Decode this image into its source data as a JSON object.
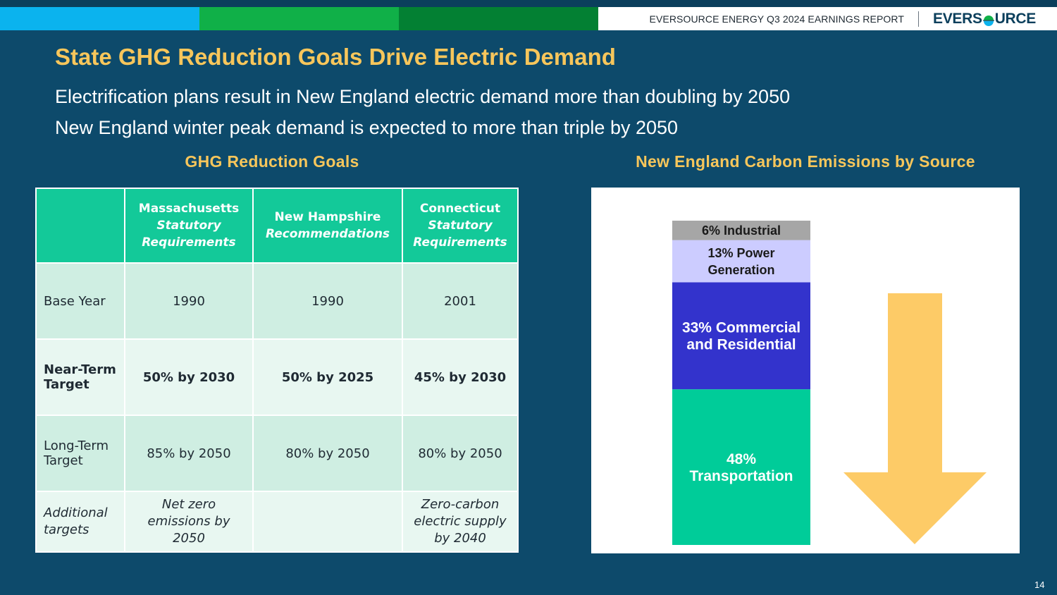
{
  "header": {
    "report_title": "EVERSOURCE ENERGY Q3 2024 EARNINGS REPORT",
    "logo_left": "EVERS",
    "logo_right": "URCE",
    "band_colors": [
      "#0bb3ee",
      "#10b048",
      "#038033"
    ]
  },
  "title": "State GHG Reduction Goals Drive Electric Demand",
  "sublines": [
    "Electrification plans result in New England electric demand more than doubling by 2050",
    "New England winter peak demand is expected to more than triple by 2050"
  ],
  "table": {
    "section_title": "GHG Reduction Goals",
    "columns": [
      {
        "name": "Massachusetts",
        "qualifier": [
          "Statutory",
          "Requirements"
        ]
      },
      {
        "name": "New Hampshire",
        "qualifier": [
          "Recommendations"
        ]
      },
      {
        "name": "Connecticut",
        "qualifier": [
          "Statutory",
          "Requirements"
        ]
      }
    ],
    "rows": [
      {
        "label": "Base Year",
        "cells": [
          "1990",
          "1990",
          "2001"
        ]
      },
      {
        "label": "Near-Term Target",
        "cells": [
          "50% by 2030",
          "50% by 2025",
          "45% by 2030"
        ]
      },
      {
        "label": "Long-Term Target",
        "cells": [
          "85% by 2050",
          "80% by 2050",
          "80% by 2050"
        ]
      },
      {
        "label": "Additional targets",
        "cells": [
          "Net zero emissions by 2050",
          "",
          "Zero-carbon electric supply by 2040"
        ]
      }
    ]
  },
  "chart_data": {
    "type": "bar",
    "title": "New England Carbon Emissions by Source",
    "stacked": true,
    "unit": "%",
    "ylim": [
      0,
      100
    ],
    "categories": [
      ""
    ],
    "series": [
      {
        "name": "Transportation",
        "label_lines": [
          "48%",
          "Transportation"
        ],
        "values": [
          48
        ],
        "color": "#00cc99",
        "text_color": "#ffffff"
      },
      {
        "name": "Commercial and Residential",
        "label_lines": [
          "33% Commercial",
          "and Residential"
        ],
        "values": [
          33
        ],
        "color": "#3333cc",
        "text_color": "#ffffff"
      },
      {
        "name": "Power Generation",
        "label_lines": [
          "13% Power",
          "Generation"
        ],
        "values": [
          13
        ],
        "color": "#ccccff",
        "text_color": "#1a1a1a"
      },
      {
        "name": "Industrial",
        "label_lines": [
          "6% Industrial"
        ],
        "values": [
          6
        ],
        "color": "#a6a6a6",
        "text_color": "#1a1a1a"
      }
    ],
    "arrow": {
      "direction": "down",
      "color": "#fdcb67"
    }
  },
  "page_number": "14"
}
